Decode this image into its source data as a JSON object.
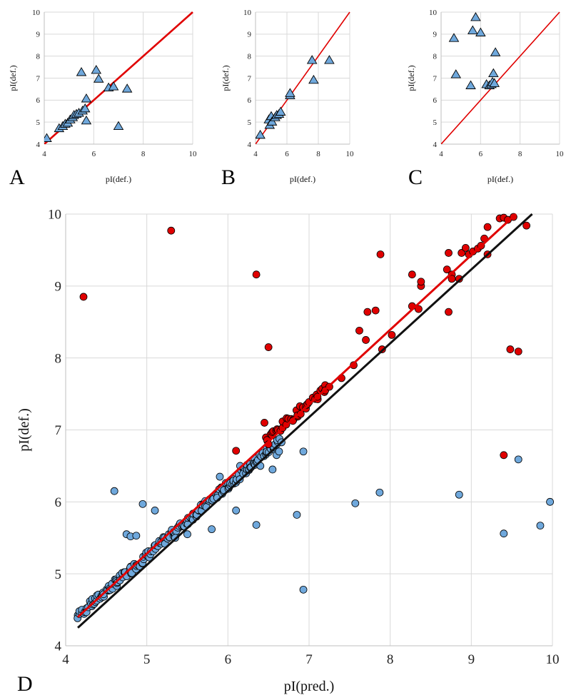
{
  "chart_data": [
    {
      "panel": "A",
      "type": "scatter",
      "xlabel": "pI(def.)",
      "ylabel": "pI(def.)",
      "xlim": [
        4,
        10
      ],
      "ylim": [
        4,
        10
      ],
      "xticks": [
        "4",
        "6",
        "8",
        "10"
      ],
      "yticks": [
        "4",
        "5",
        "6",
        "7",
        "8",
        "9",
        "10"
      ],
      "grid": true,
      "reference_line": [
        [
          4,
          4
        ],
        [
          10,
          10
        ]
      ],
      "reference_line_color": "#e00000",
      "marker": "triangle",
      "marker_color": "#6fa8dc",
      "points": [
        [
          4.1,
          4.25
        ],
        [
          4.6,
          4.7
        ],
        [
          4.75,
          4.8
        ],
        [
          4.85,
          4.9
        ],
        [
          4.95,
          4.95
        ],
        [
          5.05,
          5.1
        ],
        [
          5.15,
          5.2
        ],
        [
          5.2,
          5.3
        ],
        [
          5.3,
          5.35
        ],
        [
          5.4,
          5.4
        ],
        [
          5.55,
          5.5
        ],
        [
          5.65,
          5.6
        ],
        [
          5.5,
          7.25
        ],
        [
          5.7,
          6.05
        ],
        [
          5.7,
          5.05
        ],
        [
          6.1,
          7.35
        ],
        [
          6.2,
          6.95
        ],
        [
          6.6,
          6.55
        ],
        [
          6.8,
          6.6
        ],
        [
          7.0,
          4.8
        ],
        [
          7.35,
          6.5
        ]
      ]
    },
    {
      "panel": "B",
      "type": "scatter",
      "xlabel": "pI(def.)",
      "ylabel": "pI(def.)",
      "xlim": [
        4,
        10
      ],
      "ylim": [
        4,
        10
      ],
      "xticks": [
        "4",
        "6",
        "8",
        "10"
      ],
      "yticks": [
        "4",
        "5",
        "6",
        "7",
        "8",
        "9",
        "10"
      ],
      "grid": true,
      "reference_line": [
        [
          4,
          4
        ],
        [
          10,
          10
        ]
      ],
      "reference_line_color": "#e00000",
      "marker": "triangle",
      "marker_color": "#6fa8dc",
      "points": [
        [
          4.3,
          4.4
        ],
        [
          4.85,
          5.1
        ],
        [
          4.9,
          4.85
        ],
        [
          5.0,
          5.25
        ],
        [
          5.05,
          5.0
        ],
        [
          5.25,
          5.2
        ],
        [
          5.35,
          5.3
        ],
        [
          5.5,
          5.35
        ],
        [
          5.6,
          5.45
        ],
        [
          6.2,
          6.2
        ],
        [
          6.2,
          6.3
        ],
        [
          7.6,
          7.8
        ],
        [
          7.7,
          6.9
        ],
        [
          8.7,
          7.8
        ]
      ]
    },
    {
      "panel": "C",
      "type": "scatter",
      "xlabel": "pI(def.)",
      "ylabel": "pI(def.)",
      "xlim": [
        4,
        10
      ],
      "ylim": [
        4,
        10
      ],
      "xticks": [
        "4",
        "6",
        "8",
        "10"
      ],
      "yticks": [
        "4",
        "5",
        "6",
        "7",
        "8",
        "9",
        "10"
      ],
      "grid": true,
      "reference_line": [
        [
          4,
          4
        ],
        [
          10,
          10
        ]
      ],
      "reference_line_color": "#e00000",
      "marker": "triangle",
      "marker_color": "#6fa8dc",
      "points": [
        [
          4.65,
          8.8
        ],
        [
          4.75,
          7.15
        ],
        [
          5.5,
          6.65
        ],
        [
          5.6,
          9.15
        ],
        [
          5.75,
          9.75
        ],
        [
          6.0,
          9.05
        ],
        [
          6.3,
          6.7
        ],
        [
          6.45,
          6.65
        ],
        [
          6.55,
          6.7
        ],
        [
          6.6,
          6.8
        ],
        [
          6.65,
          7.2
        ],
        [
          6.7,
          6.75
        ],
        [
          6.75,
          8.15
        ]
      ]
    },
    {
      "panel": "D",
      "type": "scatter",
      "xlabel": "pI(pred.)",
      "ylabel": "pI(def.)",
      "xlim": [
        4,
        10
      ],
      "ylim": [
        4,
        10
      ],
      "xticks": [
        "4",
        "5",
        "6",
        "7",
        "8",
        "9",
        "10"
      ],
      "yticks": [
        "4",
        "5",
        "6",
        "7",
        "8",
        "9",
        "10"
      ],
      "grid": true,
      "lines": [
        {
          "color": "#111111",
          "from": [
            4.15,
            4.25
          ],
          "to": [
            9.75,
            10.0
          ]
        },
        {
          "color": "#e00000",
          "from": [
            4.15,
            4.4
          ],
          "to": [
            9.55,
            10.0
          ]
        }
      ],
      "series": [
        {
          "color": "#6fa8dc",
          "cluster": {
            "x_from": 4.15,
            "x_to": 6.65,
            "intercept": 0.35,
            "slope": 0.98,
            "count": 210
          },
          "points": [
            [
              4.6,
              6.15
            ],
            [
              4.95,
              5.97
            ],
            [
              5.1,
              5.88
            ],
            [
              4.75,
              5.55
            ],
            [
              4.8,
              5.52
            ],
            [
              4.87,
              5.53
            ],
            [
              5.8,
              5.62
            ],
            [
              6.1,
              5.88
            ],
            [
              6.35,
              5.68
            ],
            [
              6.85,
              5.82
            ],
            [
              6.93,
              6.7
            ],
            [
              6.93,
              4.78
            ],
            [
              7.57,
              5.98
            ],
            [
              7.87,
              6.13
            ],
            [
              8.85,
              6.1
            ],
            [
              9.4,
              5.56
            ],
            [
              9.58,
              6.59
            ],
            [
              9.85,
              5.67
            ],
            [
              9.97,
              6.0
            ],
            [
              5.35,
              5.5
            ],
            [
              5.9,
              6.35
            ],
            [
              6.15,
              6.5
            ],
            [
              6.55,
              6.45
            ],
            [
              6.6,
              6.65
            ],
            [
              6.63,
              6.7
            ],
            [
              6.4,
              6.5
            ],
            [
              5.5,
              5.55
            ]
          ]
        },
        {
          "color": "#e00000",
          "cluster": {
            "x_from": 6.45,
            "x_to": 7.2,
            "intercept": 0.52,
            "slope": 0.98,
            "count": 38
          },
          "points": [
            [
              4.22,
              8.85
            ],
            [
              5.3,
              9.77
            ],
            [
              6.35,
              9.16
            ],
            [
              6.5,
              8.15
            ],
            [
              6.1,
              6.71
            ],
            [
              6.45,
              7.1
            ],
            [
              6.5,
              6.8
            ],
            [
              7.2,
              7.55
            ],
            [
              7.25,
              7.6
            ],
            [
              7.4,
              7.72
            ],
            [
              7.55,
              7.9
            ],
            [
              7.62,
              8.38
            ],
            [
              7.7,
              8.25
            ],
            [
              7.72,
              8.64
            ],
            [
              7.82,
              8.66
            ],
            [
              7.88,
              9.44
            ],
            [
              7.9,
              8.12
            ],
            [
              8.02,
              8.32
            ],
            [
              8.27,
              9.16
            ],
            [
              8.27,
              8.72
            ],
            [
              8.35,
              8.68
            ],
            [
              8.38,
              9.0
            ],
            [
              8.38,
              9.06
            ],
            [
              8.7,
              9.23
            ],
            [
              8.72,
              9.46
            ],
            [
              8.72,
              8.64
            ],
            [
              8.76,
              9.16
            ],
            [
              8.76,
              9.1
            ],
            [
              8.85,
              9.1
            ],
            [
              8.88,
              9.46
            ],
            [
              8.93,
              9.53
            ],
            [
              8.97,
              9.44
            ],
            [
              9.02,
              9.48
            ],
            [
              9.08,
              9.52
            ],
            [
              9.12,
              9.56
            ],
            [
              9.16,
              9.66
            ],
            [
              9.2,
              9.82
            ],
            [
              9.2,
              9.44
            ],
            [
              9.35,
              9.94
            ],
            [
              9.4,
              9.95
            ],
            [
              9.45,
              9.92
            ],
            [
              9.52,
              9.96
            ],
            [
              9.68,
              9.84
            ],
            [
              9.48,
              8.12
            ],
            [
              9.58,
              8.09
            ],
            [
              9.4,
              6.65
            ]
          ]
        }
      ]
    }
  ]
}
